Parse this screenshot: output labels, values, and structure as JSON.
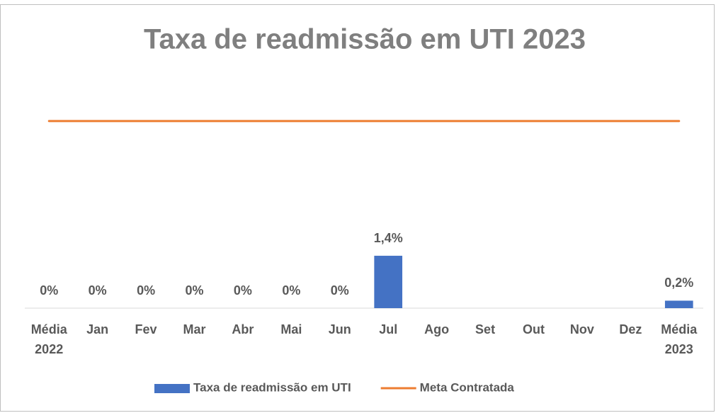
{
  "chart_data": {
    "type": "bar",
    "title": "Taxa de readmissão em UTI 2023",
    "categories": [
      "Média 2022",
      "Jan",
      "Fev",
      "Mar",
      "Abr",
      "Mai",
      "Jun",
      "Jul",
      "Ago",
      "Set",
      "Out",
      "Nov",
      "Dez",
      "Média 2023"
    ],
    "series": [
      {
        "name": "Taxa de readmissão em UTI",
        "type": "bar",
        "color": "#4472c4",
        "values": [
          0,
          0,
          0,
          0,
          0,
          0,
          0,
          1.4,
          null,
          null,
          null,
          null,
          null,
          0.2
        ],
        "value_labels": [
          "0%",
          "0%",
          "0%",
          "0%",
          "0%",
          "0%",
          "0%",
          "1,4%",
          null,
          null,
          null,
          null,
          null,
          "0,2%"
        ]
      },
      {
        "name": "Meta Contratada",
        "type": "line",
        "color": "#ed7d31",
        "values": [
          5,
          5,
          5,
          5,
          5,
          5,
          5,
          5,
          5,
          5,
          5,
          5,
          5,
          5
        ]
      }
    ],
    "ylim": [
      0,
      6
    ],
    "legend": "bottom"
  }
}
